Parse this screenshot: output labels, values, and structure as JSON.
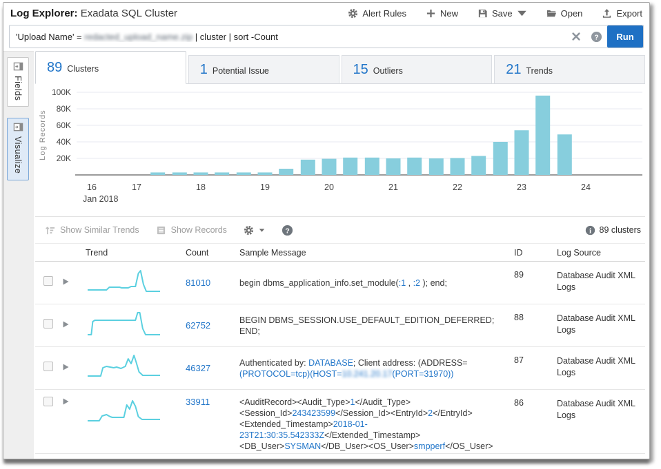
{
  "header": {
    "title_bold": "Log Explorer:",
    "title_rest": "Exadata SQL Cluster",
    "actions": {
      "alert_rules": "Alert Rules",
      "new": "New",
      "save": "Save",
      "open": "Open",
      "export": "Export"
    }
  },
  "search": {
    "query_prefix": "'Upload Name' = ",
    "query_redacted": "redacted_upload_name.zip",
    "query_suffix": " | cluster | sort -Count",
    "run_label": "Run"
  },
  "sidebar": {
    "fields_label": "Fields",
    "visualize_label": "Visualize"
  },
  "tabs": [
    {
      "count": "89",
      "label": "Clusters",
      "active": true
    },
    {
      "count": "1",
      "label": "Potential Issue",
      "active": false
    },
    {
      "count": "15",
      "label": "Outliers",
      "active": false
    },
    {
      "count": "21",
      "label": "Trends",
      "active": false
    }
  ],
  "chart_data": {
    "type": "bar",
    "title": "",
    "ylabel": "Log Records",
    "xlabel": "",
    "x_sub_label": "Jan 2018",
    "ylim": [
      0,
      100000
    ],
    "ytick_step": 20000,
    "ytick_labels": [
      "20K",
      "40K",
      "60K",
      "80K",
      "100K"
    ],
    "xtick_days": [
      16,
      17,
      18,
      19,
      20,
      21,
      22,
      23,
      24
    ],
    "x_day": [
      17.33,
      17.67,
      18.0,
      18.33,
      18.67,
      19.0,
      19.33,
      19.67,
      20.0,
      20.33,
      20.67,
      21.0,
      21.33,
      21.67,
      22.0,
      22.33,
      22.67,
      23.0,
      23.33,
      23.67
    ],
    "values": [
      3000,
      3000,
      3000,
      3000,
      3000,
      3000,
      7500,
      18500,
      19500,
      21000,
      21000,
      20000,
      21000,
      20000,
      20500,
      23000,
      40000,
      54000,
      96000,
      49000
    ],
    "bar_color": "#87cedd",
    "grid": true,
    "legend": "none"
  },
  "toolbar": {
    "show_similar_trends": "Show Similar Trends",
    "show_records": "Show Records",
    "clusters_count": "89 clusters"
  },
  "table": {
    "columns": {
      "trend": "Trend",
      "count": "Count",
      "message": "Sample Message",
      "id": "ID",
      "source": "Log Source"
    },
    "rows": [
      {
        "count": "81010",
        "id": "89",
        "source": "Database Audit XML Logs",
        "tall": false,
        "trend": [
          [
            0,
            34
          ],
          [
            26,
            34
          ],
          [
            30,
            30
          ],
          [
            44,
            30
          ],
          [
            47,
            31
          ],
          [
            56,
            31
          ],
          [
            60,
            29
          ],
          [
            66,
            29
          ],
          [
            70,
            10
          ],
          [
            73,
            6
          ],
          [
            77,
            26
          ],
          [
            81,
            36
          ],
          [
            100,
            36
          ]
        ],
        "message": [
          {
            "t": "begin dbms_application_info.set_module(",
            "s": "plain"
          },
          {
            "t": ":1",
            "s": "link"
          },
          {
            "t": " , ",
            "s": "plain"
          },
          {
            "t": ":2",
            "s": "link"
          },
          {
            "t": "  ); end;",
            "s": "plain"
          }
        ]
      },
      {
        "count": "62752",
        "id": "88",
        "source": "Database Audit XML Logs",
        "tall": false,
        "trend": [
          [
            0,
            37
          ],
          [
            5,
            37
          ],
          [
            7,
            18
          ],
          [
            10,
            16
          ],
          [
            62,
            16
          ],
          [
            66,
            16
          ],
          [
            69,
            5
          ],
          [
            72,
            5
          ],
          [
            76,
            28
          ],
          [
            80,
            37
          ],
          [
            100,
            37
          ]
        ],
        "message": [
          {
            "t": "BEGIN DBMS_SESSION.USE_DEFAULT_EDITION_DEFERRED; END;",
            "s": "plain"
          }
        ]
      },
      {
        "count": "46327",
        "id": "87",
        "source": "Database Audit XML Logs",
        "tall": false,
        "trend": [
          [
            0,
            35
          ],
          [
            18,
            35
          ],
          [
            21,
            23
          ],
          [
            26,
            21
          ],
          [
            36,
            23
          ],
          [
            40,
            22
          ],
          [
            46,
            24
          ],
          [
            52,
            21
          ],
          [
            56,
            10
          ],
          [
            60,
            17
          ],
          [
            64,
            5
          ],
          [
            67,
            15
          ],
          [
            71,
            29
          ],
          [
            76,
            34
          ],
          [
            100,
            34
          ]
        ],
        "message": [
          {
            "t": "Authenticated by: ",
            "s": "plain"
          },
          {
            "t": "DATABASE",
            "s": "link"
          },
          {
            "t": "; Client address: (ADDRESS= ",
            "s": "plain"
          },
          {
            "t": "(PROTOCOL=tcp)(HOST=",
            "s": "link"
          },
          {
            "t": "10.241.20.17",
            "s": "blur-link"
          },
          {
            "t": "(PORT=31970))",
            "s": "link"
          }
        ]
      },
      {
        "count": "33911",
        "id": "86",
        "source": "Database Audit XML Logs",
        "tall": true,
        "trend": [
          [
            0,
            35
          ],
          [
            16,
            35
          ],
          [
            20,
            28
          ],
          [
            26,
            26
          ],
          [
            31,
            29
          ],
          [
            34,
            30
          ],
          [
            50,
            30
          ],
          [
            54,
            12
          ],
          [
            58,
            18
          ],
          [
            62,
            6
          ],
          [
            66,
            14
          ],
          [
            70,
            29
          ],
          [
            75,
            33
          ],
          [
            100,
            33
          ]
        ],
        "message": [
          {
            "t": "<AuditRecord><Audit_Type>",
            "s": "plain"
          },
          {
            "t": "1",
            "s": "link"
          },
          {
            "t": "</Audit_Type><Session_Id>",
            "s": "plain"
          },
          {
            "t": "243423599",
            "s": "link"
          },
          {
            "t": "</Session_Id><EntryId>",
            "s": "plain"
          },
          {
            "t": "2",
            "s": "link"
          },
          {
            "t": "</EntryId><Extended_Timestamp>",
            "s": "plain"
          },
          {
            "t": "2018-01-23T21:30:35.542333Z",
            "s": "link"
          },
          {
            "t": "</Extended_Timestamp><DB_User>",
            "s": "plain"
          },
          {
            "t": "SYSMAN",
            "s": "link"
          },
          {
            "t": "</DB_User><OS_User>",
            "s": "plain"
          },
          {
            "t": "smpperf",
            "s": "link"
          },
          {
            "t": "</OS_User>",
            "s": "plain"
          }
        ]
      }
    ]
  },
  "colors": {
    "accent_blue": "#1e70c4",
    "link_blue": "#2276c9",
    "bar_blue": "#87cedd",
    "sparkline_teal": "#5bd0e0"
  }
}
